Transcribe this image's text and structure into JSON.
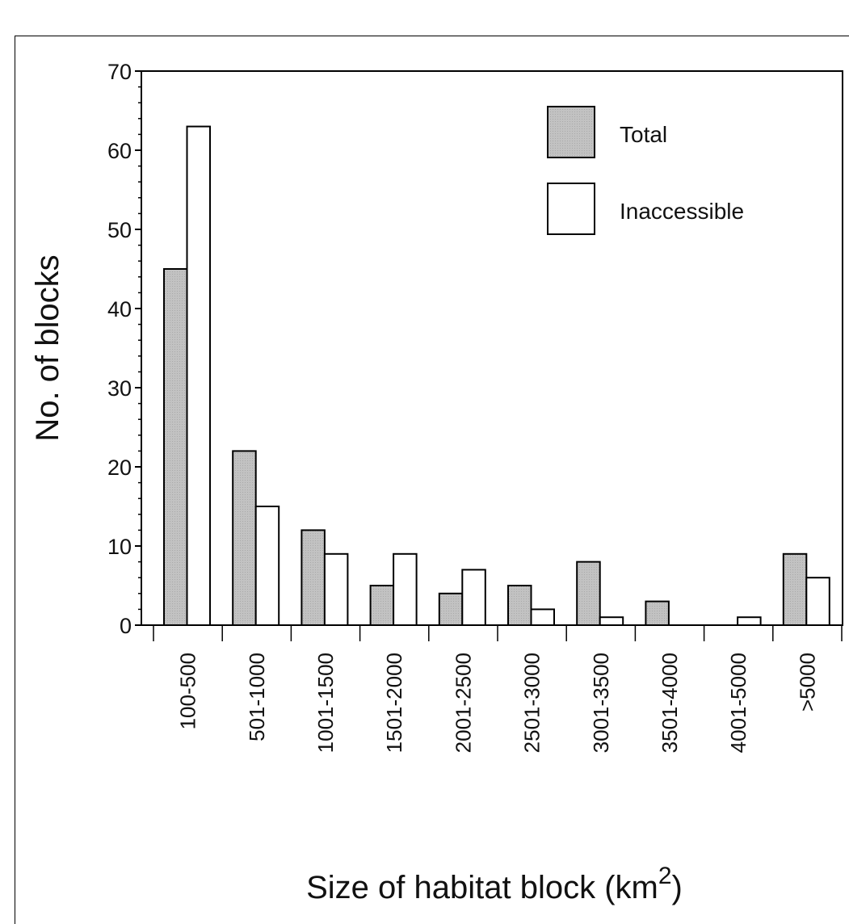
{
  "chart_data": {
    "type": "bar",
    "title": "",
    "xlabel": "Size of habitat block (km",
    "xlabel_superscript": "2",
    "xlabel_suffix": ")",
    "ylabel": "No. of blocks",
    "ylim": [
      0,
      70
    ],
    "yticks": [
      "0",
      "10",
      "20",
      "30",
      "40",
      "50",
      "60",
      "70"
    ],
    "categories": [
      "100-500",
      "501-1000",
      "1001-1500",
      "1501-2000",
      "2001-2500",
      "2501-3000",
      "3001-3500",
      "3501-4000",
      "4001-5000",
      ">5000"
    ],
    "series": [
      {
        "name": "Total",
        "color": "#c4c4c4",
        "values": [
          45,
          22,
          12,
          5,
          4,
          5,
          8,
          3,
          0,
          9
        ]
      },
      {
        "name": "Inaccessible",
        "color": "#ffffff",
        "values": [
          63,
          15,
          9,
          9,
          7,
          2,
          1,
          0,
          1,
          6
        ]
      }
    ],
    "legend_position": "top-right",
    "grid": false
  }
}
